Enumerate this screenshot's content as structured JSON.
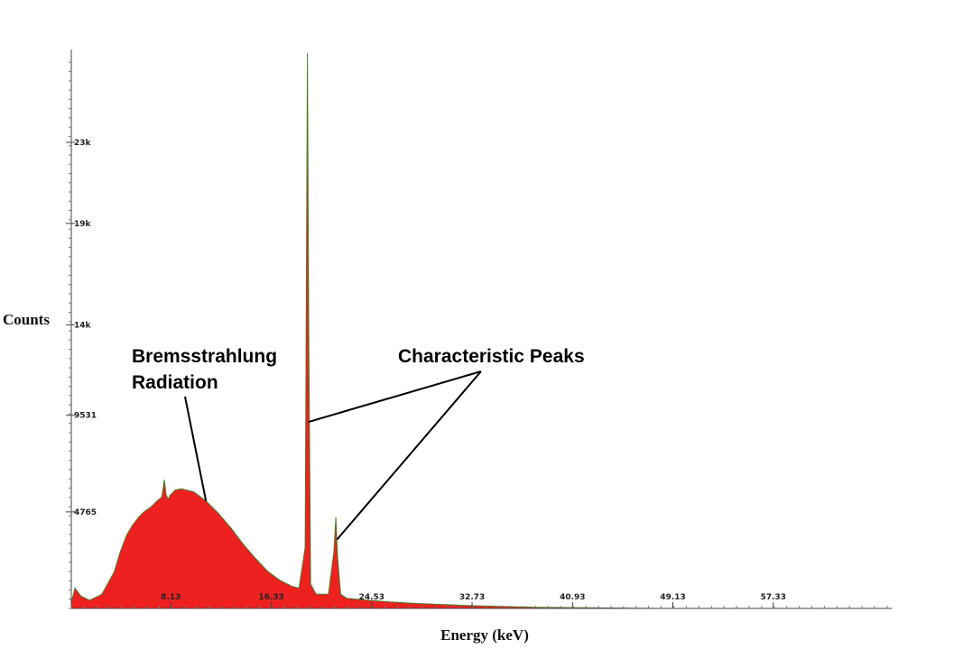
{
  "chart_data": {
    "type": "area",
    "title": "",
    "xlabel": "Energy (keV)",
    "ylabel": "Counts",
    "xlim": [
      0,
      67
    ],
    "ylim": [
      0,
      27400
    ],
    "x_ticks": [
      "8.13",
      "16.33",
      "24.53",
      "32.73",
      "40.93",
      "49.13",
      "57.33"
    ],
    "x_tick_values": [
      8.13,
      16.33,
      24.53,
      32.73,
      40.93,
      49.13,
      57.33
    ],
    "y_ticks": [
      "4765",
      "9531",
      "14k",
      "19k",
      "23k"
    ],
    "y_tick_values": [
      4765,
      9531,
      14000,
      19000,
      23000
    ],
    "grid": false,
    "colors": {
      "fill": "#ee2020",
      "edge": "#4e7a2a"
    },
    "series": [
      {
        "x": [
          0,
          0.3,
          0.8,
          1.5,
          2.5,
          3.5,
          4.0,
          4.5,
          5.0,
          5.5,
          6.0,
          6.5,
          7.0,
          7.4,
          7.6,
          7.75,
          7.9,
          8.1,
          8.5,
          9.0,
          10.0,
          11.0,
          12.0,
          13.0,
          14.0,
          15.0,
          16.0,
          17.0,
          18.0,
          18.6,
          19.1,
          19.2,
          19.28,
          19.4,
          19.55,
          20.0,
          21.0,
          21.45,
          21.6,
          21.75,
          22.0,
          22.5,
          24.0,
          26.0,
          28.0,
          30.0,
          32.0,
          35.0,
          38.0,
          42.0,
          46.0,
          48.0
        ],
        "y": [
          300,
          1000,
          600,
          400,
          700,
          1800,
          2800,
          3600,
          4100,
          4500,
          4800,
          5000,
          5300,
          5500,
          6350,
          5600,
          5400,
          5600,
          5850,
          5900,
          5750,
          5300,
          4700,
          4000,
          3200,
          2500,
          1850,
          1400,
          1100,
          1000,
          3000,
          16000,
          27400,
          13000,
          1200,
          700,
          700,
          2800,
          4500,
          2500,
          700,
          500,
          420,
          320,
          250,
          200,
          150,
          100,
          60,
          30,
          10,
          0
        ]
      }
    ],
    "annotations": [
      {
        "text_lines": [
          "Bremsstrahlung",
          "Radiation"
        ],
        "points_to": [
          [
            11.0,
            5300
          ]
        ]
      },
      {
        "text_lines": [
          "Characteristic Peaks"
        ],
        "points_to": [
          [
            19.35,
            9200
          ],
          [
            21.7,
            3400
          ]
        ]
      }
    ]
  }
}
